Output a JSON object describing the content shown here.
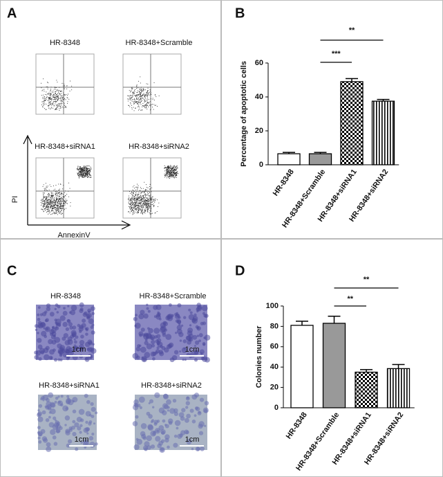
{
  "panels": {
    "A": {
      "label": "A",
      "plots": [
        "HR-8348",
        "HR-8348+Scramble",
        "HR-8348+siRNA1",
        "HR-8348+siRNA2"
      ],
      "y_label": "PI",
      "x_label": "AnnexinV"
    },
    "C": {
      "label": "C",
      "images": [
        "HR-8348",
        "HR-8348+Scramble",
        "HR-8348+siRNA1",
        "HR-8348+siRNA2"
      ],
      "scale_bars": [
        "1cm",
        "1cm",
        "1cm",
        "1cm"
      ]
    }
  },
  "chart_data": [
    {
      "type": "bar",
      "panel": "B",
      "ylabel": "Percentage of apoptotic cells",
      "categories": [
        "HR-8348",
        "HR-8348+Scramble",
        "HR-8348+siRNA1",
        "HR-8348+siRNA2"
      ],
      "values": [
        6.5,
        6.5,
        49,
        37.5
      ],
      "errors": [
        0.8,
        0.8,
        1.8,
        1
      ],
      "colors": [
        "#ffffff",
        "#999999",
        "#000000",
        "#000000"
      ],
      "patterns": [
        "solid",
        "solid",
        "checker",
        "vstripes"
      ],
      "ylim": [
        0,
        60
      ],
      "yticks": [
        0,
        20,
        40,
        60
      ],
      "comparisons": [
        {
          "from": 1,
          "to": 3,
          "label": "**"
        },
        {
          "from": 1,
          "to": 2,
          "label": "***"
        }
      ]
    },
    {
      "type": "bar",
      "panel": "D",
      "ylabel": "Colonies number",
      "categories": [
        "HR-8348",
        "HR-8348+Scramble",
        "HR-8348+siRNA1",
        "HR-8348+siRNA2"
      ],
      "values": [
        81,
        83,
        35,
        38.5
      ],
      "errors": [
        4,
        7,
        2.5,
        4
      ],
      "colors": [
        "#ffffff",
        "#999999",
        "#000000",
        "#000000"
      ],
      "patterns": [
        "solid",
        "solid",
        "checker",
        "vstripes"
      ],
      "ylim": [
        0,
        100
      ],
      "yticks": [
        0,
        20,
        40,
        60,
        80,
        100
      ],
      "comparisons": [
        {
          "from": 1,
          "to": 3,
          "label": "**"
        },
        {
          "from": 1,
          "to": 2,
          "label": "**"
        }
      ]
    }
  ]
}
